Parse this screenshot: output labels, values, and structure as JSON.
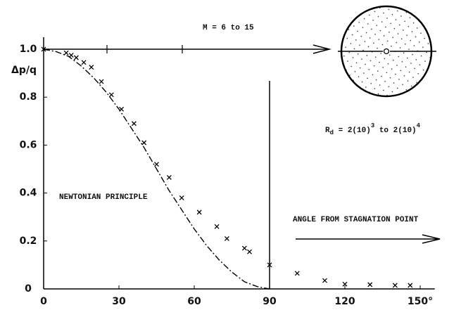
{
  "chart_data": {
    "type": "scatter",
    "annotations": {
      "mach": "M = 6 to 15",
      "reynolds": {
        "symbol": "R",
        "sub": "d",
        "part1": " = 2(10)",
        "exp1": "3",
        "part2": " to 2(10)",
        "exp2": "4"
      },
      "newtonian": "NEWTONIAN PRINCIPLE",
      "angle": "ANGLE FROM STAGNATION POINT"
    },
    "ylabel": "Δp/q",
    "xlim": [
      0,
      160
    ],
    "ylim": [
      0,
      1.05
    ],
    "xticks": [
      0,
      30,
      60,
      90,
      120,
      {
        "value": 150,
        "label": "150°"
      }
    ],
    "yticks": [
      0,
      0.2,
      0.4,
      0.6,
      0.8,
      {
        "value": 1,
        "label": "1.0"
      }
    ],
    "series": [
      {
        "name": "NEWTONIAN PRINCIPLE",
        "style": "dash-dot",
        "color": "#000000",
        "x": [
          0,
          5,
          10,
          15,
          20,
          25,
          30,
          35,
          40,
          45,
          50,
          55,
          60,
          65,
          70,
          75,
          80,
          85,
          90
        ],
        "values": [
          1.0,
          0.99,
          0.97,
          0.93,
          0.88,
          0.82,
          0.75,
          0.67,
          0.59,
          0.5,
          0.41,
          0.33,
          0.25,
          0.18,
          0.12,
          0.07,
          0.03,
          0.01,
          0
        ]
      },
      {
        "style": "cross",
        "color": "#000000",
        "x": [
          0,
          9,
          11,
          13,
          16,
          19,
          23,
          27,
          31,
          36,
          40,
          45,
          50,
          55,
          62,
          69,
          73,
          80,
          82,
          90,
          101,
          112,
          120,
          130,
          140,
          146
        ],
        "values": [
          1.0,
          0.985,
          0.975,
          0.965,
          0.945,
          0.925,
          0.865,
          0.81,
          0.75,
          0.69,
          0.61,
          0.52,
          0.465,
          0.38,
          0.32,
          0.26,
          0.21,
          0.17,
          0.155,
          0.1,
          0.065,
          0.035,
          0.02,
          0.018,
          0.015,
          0.015
        ]
      }
    ]
  }
}
